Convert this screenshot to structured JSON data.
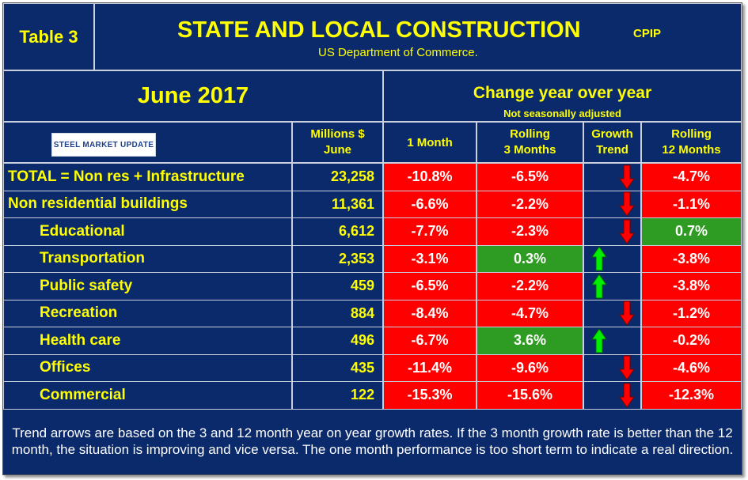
{
  "header": {
    "table_label": "Table 3",
    "title": "STATE AND LOCAL CONSTRUCTION",
    "tag": "CPIP",
    "source": "US Department of Commerce."
  },
  "period": "June 2017",
  "change_heading": "Change year over year",
  "adjustment_note": "Not seasonally adjusted",
  "logo_text": "STEEL MARKET UPDATE",
  "columns": {
    "millions_line1": "Millions $",
    "millions_line2": "June",
    "one_month": "1 Month",
    "rolling3_line1": "Rolling",
    "rolling3_line2": "3 Months",
    "trend_line1": "Growth",
    "trend_line2": "Trend",
    "rolling12_line1": "Rolling",
    "rolling12_line2": "12 Months"
  },
  "rows": [
    {
      "label": "TOTAL = Non res + Infrastructure",
      "millions": "23,258",
      "m1": "-10.8%",
      "m3": "-6.5%",
      "trend": "down",
      "m12": "-4.7%",
      "m3_color": "#ff0000",
      "m12_color": "#ff0000"
    },
    {
      "label": "Non residential buildings",
      "millions": "11,361",
      "m1": "-6.6%",
      "m3": "-2.2%",
      "trend": "down",
      "m12": "-1.1%",
      "m3_color": "#ff0000",
      "m12_color": "#ff0000"
    },
    {
      "label": "Educational",
      "millions": "6,612",
      "m1": "-7.7%",
      "m3": "-2.3%",
      "trend": "down",
      "m12": "0.7%",
      "m3_color": "#ff0000",
      "m12_color": "#2e9b22"
    },
    {
      "label": "Transportation",
      "millions": "2,353",
      "m1": "-3.1%",
      "m3": "0.3%",
      "trend": "up",
      "m12": "-3.8%",
      "m3_color": "#2e9b22",
      "m12_color": "#ff0000"
    },
    {
      "label": "Public safety",
      "millions": "459",
      "m1": "-6.5%",
      "m3": "-2.2%",
      "trend": "up",
      "m12": "-3.8%",
      "m3_color": "#ff0000",
      "m12_color": "#ff0000"
    },
    {
      "label": "Recreation",
      "millions": "884",
      "m1": "-8.4%",
      "m3": "-4.7%",
      "trend": "down",
      "m12": "-1.2%",
      "m3_color": "#ff0000",
      "m12_color": "#ff0000"
    },
    {
      "label": "Health care",
      "millions": "496",
      "m1": "-6.7%",
      "m3": "3.6%",
      "trend": "up",
      "m12": "-0.2%",
      "m3_color": "#2e9b22",
      "m12_color": "#ff0000"
    },
    {
      "label": "Offices",
      "millions": "435",
      "m1": "-11.4%",
      "m3": "-9.6%",
      "trend": "down",
      "m12": "-4.6%",
      "m3_color": "#ff0000",
      "m12_color": "#ff0000"
    },
    {
      "label": "Commercial",
      "millions": "122",
      "m1": "-15.3%",
      "m3": "-15.6%",
      "trend": "down",
      "m12": "-12.3%",
      "m3_color": "#ff0000",
      "m12_color": "#ff0000"
    }
  ],
  "footnote": "Trend arrows are based on the 3 and 12 month year on year growth rates. If the 3 month growth rate is better than the 12 month, the situation is improving and vice versa. The one month performance is too short term to indicate a real direction."
}
